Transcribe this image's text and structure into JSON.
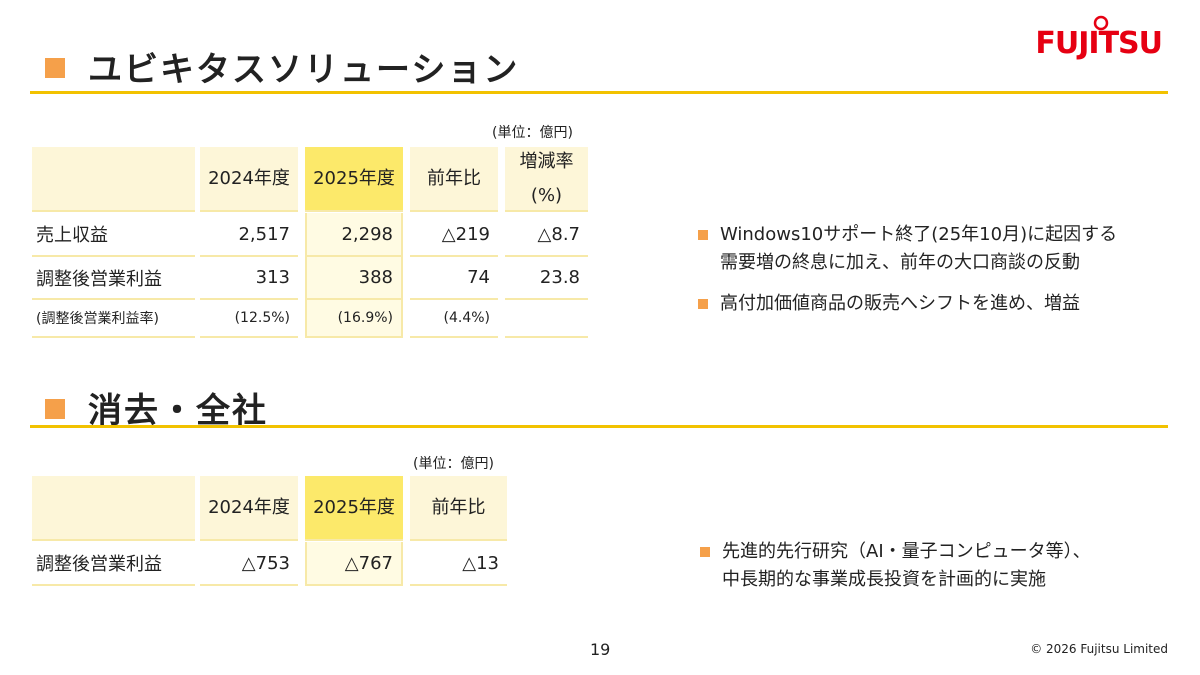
{
  "logo": "FUJITSU",
  "sections": [
    {
      "title": "ユビキタスソリューション",
      "unit": "(単位：億円)",
      "table": {
        "header": [
          "2024年度",
          "2025年度",
          "前年比",
          "増減率\n(%)"
        ],
        "rows": [
          [
            "売上収益",
            "2,517",
            "2,298",
            "△219",
            "△8.7"
          ],
          [
            "調整後営業利益",
            "313",
            "388",
            "74",
            "23.8"
          ],
          [
            "(調整後営業利益率)",
            "(12.5%)",
            "(16.9%)",
            "(4.4%)"
          ]
        ]
      },
      "bullets": [
        "Windows10サポート終了(25年10月)に起因する\n需要増の終息に加え、前年の大口商談の反動",
        "高付加価値商品の販売へシフトを進め、増益"
      ]
    },
    {
      "title": "消去・全社",
      "unit": "(単位：億円)",
      "table": {
        "header": [
          "2024年度",
          "2025年度",
          "前年比"
        ],
        "rows": [
          [
            "調整後営業利益",
            "△753",
            "△767",
            "△13"
          ]
        ]
      },
      "bullets": [
        "先進的先行研究（AI・量子コンピュータ等）、\n中長期的な事業成長投資を計画的に実施"
      ]
    }
  ],
  "page_number": "19",
  "copyright": "© 2026 Fujitsu Limited"
}
